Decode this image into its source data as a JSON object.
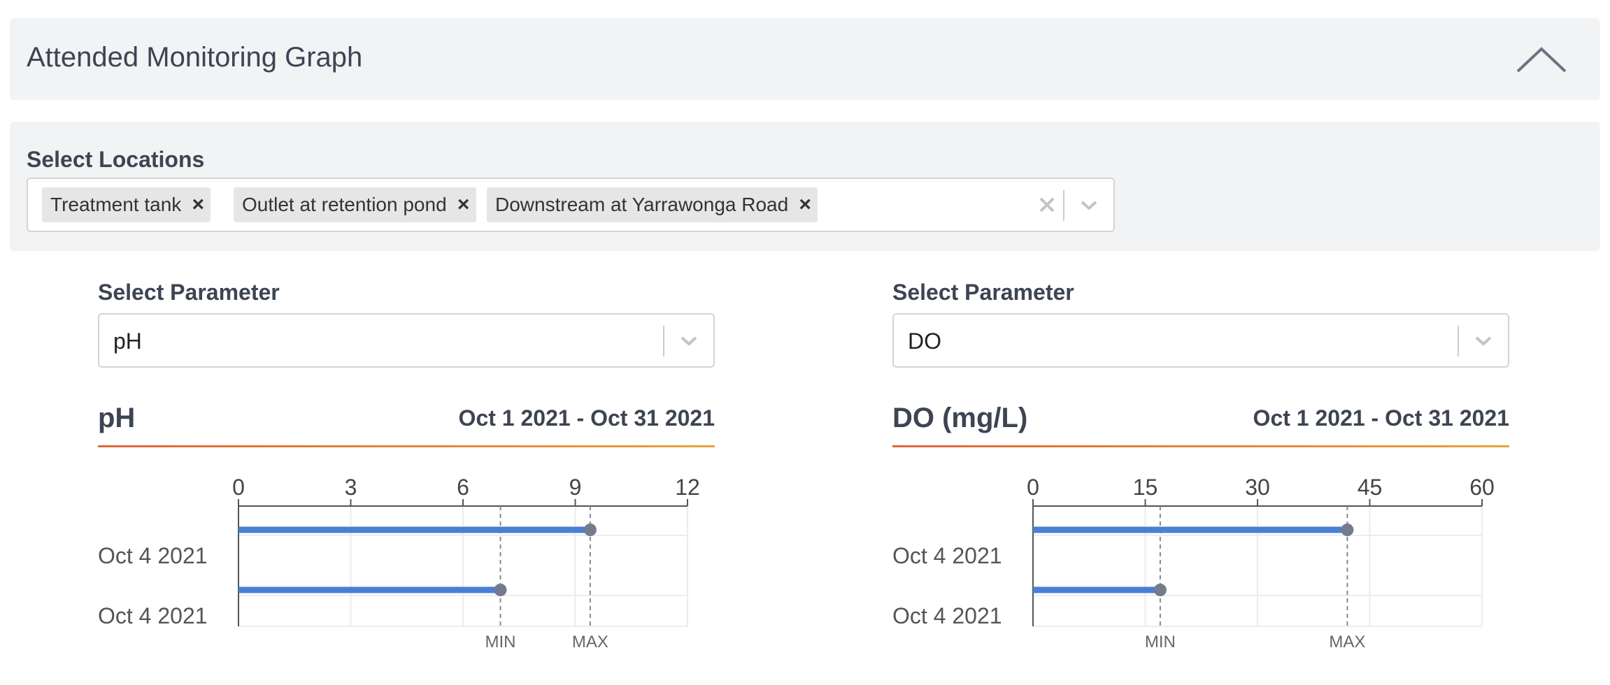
{
  "header": {
    "title": "Attended Monitoring Graph",
    "collapse_icon": "chevron-up-icon"
  },
  "locations": {
    "label": "Select Locations",
    "selected": [
      "Treatment tank",
      "Outlet at retention pond",
      "Downstream at Yarrawonga Road"
    ],
    "remove_glyph": "×",
    "clear_glyph": "×"
  },
  "panels": [
    {
      "param_label": "Select Parameter",
      "selected": "pH",
      "title": "pH",
      "date_range": "Oct 1 2021 - Oct 31 2021"
    },
    {
      "param_label": "Select Parameter",
      "selected": "DO",
      "title": "DO (mg/L)",
      "date_range": "Oct 1 2021 - Oct 31 2021"
    }
  ],
  "chart_data": [
    {
      "type": "bar",
      "orientation": "horizontal",
      "title": "pH",
      "categories": [
        "Oct 4 2021",
        "Oct 4 2021"
      ],
      "values": [
        9.4,
        7.0
      ],
      "xlim": [
        0,
        12
      ],
      "xticks": [
        0,
        3,
        6,
        9,
        12
      ],
      "reference_lines": [
        {
          "label": "MIN",
          "value": 7.0
        },
        {
          "label": "MAX",
          "value": 9.4
        }
      ],
      "bar_color": "#4a7fd4",
      "marker_color": "#737b8c",
      "grid": true
    },
    {
      "type": "bar",
      "orientation": "horizontal",
      "title": "DO (mg/L)",
      "categories": [
        "Oct 4 2021",
        "Oct 4 2021"
      ],
      "values": [
        42,
        17
      ],
      "xlim": [
        0,
        60
      ],
      "xticks": [
        0,
        15,
        30,
        45,
        60
      ],
      "reference_lines": [
        {
          "label": "MIN",
          "value": 17
        },
        {
          "label": "MAX",
          "value": 42
        }
      ],
      "bar_color": "#4a7fd4",
      "marker_color": "#737b8c",
      "grid": true
    }
  ]
}
